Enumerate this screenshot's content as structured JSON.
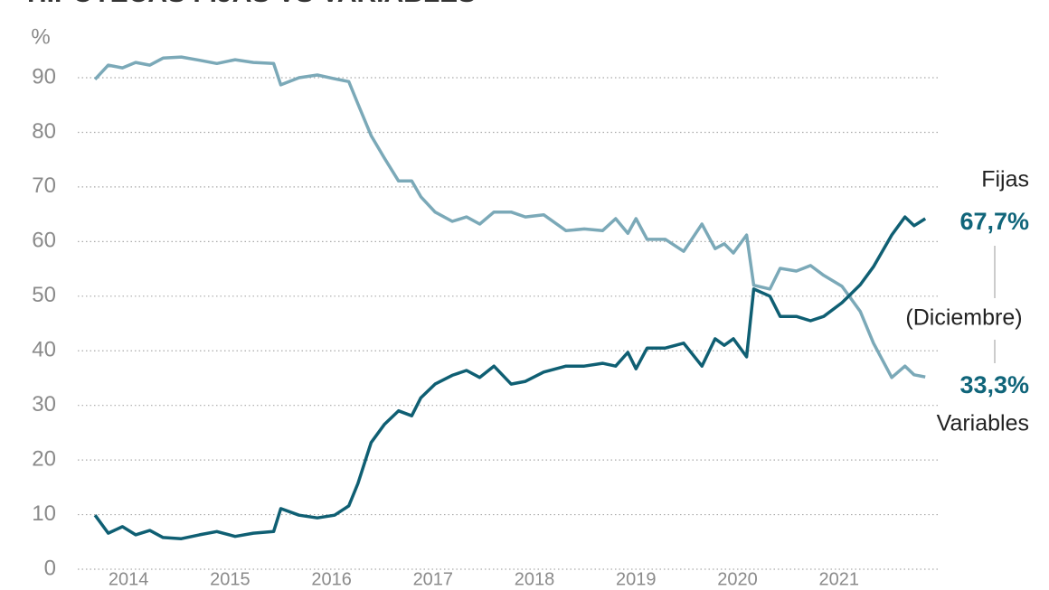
{
  "chart_data": {
    "type": "line",
    "title": "HIPOTECAS FIJAS VS VARIABLES",
    "y_label": "%",
    "x": [
      2013.67,
      2013.8,
      2013.94,
      2014.07,
      2014.21,
      2014.34,
      2014.52,
      2014.7,
      2014.87,
      2015.05,
      2015.23,
      2015.43,
      2015.5,
      2015.68,
      2015.86,
      2016.03,
      2016.17,
      2016.26,
      2016.39,
      2016.52,
      2016.66,
      2016.79,
      2016.88,
      2017.02,
      2017.19,
      2017.33,
      2017.46,
      2017.6,
      2017.77,
      2017.91,
      2018.09,
      2018.31,
      2018.49,
      2018.67,
      2018.8,
      2018.92,
      2019.0,
      2019.11,
      2019.29,
      2019.47,
      2019.65,
      2019.78,
      2019.87,
      2019.96,
      2020.09,
      2020.16,
      2020.32,
      2020.42,
      2020.58,
      2020.72,
      2020.85,
      2021.03,
      2021.21,
      2021.34,
      2021.52,
      2021.65,
      2021.74,
      2021.85
    ],
    "series": [
      {
        "name": "Fijas",
        "color": "#7ba9b8",
        "values": [
          89.7,
          92.3,
          91.8,
          92.8,
          92.3,
          93.6,
          93.8,
          93.2,
          92.6,
          93.3,
          92.8,
          92.6,
          88.7,
          90,
          90.5,
          89.8,
          89.3,
          85.2,
          79.4,
          75.3,
          71.1,
          71.1,
          68.2,
          65.4,
          63.7,
          64.5,
          63.2,
          65.4,
          65.4,
          64.5,
          64.9,
          62.0,
          62.3,
          62.0,
          64.2,
          61.5,
          64.2,
          60.4,
          60.4,
          58.2,
          63.2,
          58.7,
          59.6,
          57.9,
          61.2,
          52.0,
          51.3,
          55.1,
          54.6,
          55.6,
          53.8,
          51.8,
          47.2,
          41.4,
          35.1,
          37.2,
          35.6,
          35.2
        ]
      },
      {
        "name": "Variables",
        "color": "#0f5f73",
        "values": [
          9.9,
          6.6,
          7.8,
          6.3,
          7.1,
          5.8,
          5.6,
          6.3,
          6.9,
          6.0,
          6.6,
          6.9,
          11.1,
          9.9,
          9.4,
          9.9,
          11.6,
          15.7,
          23.2,
          26.5,
          29.0,
          28.1,
          31.4,
          33.9,
          35.5,
          36.4,
          35.1,
          37.2,
          33.9,
          34.4,
          36.1,
          37.2,
          37.2,
          37.7,
          37.2,
          39.7,
          36.7,
          40.5,
          40.5,
          41.4,
          37.2,
          42.2,
          41.0,
          42.2,
          38.9,
          51.3,
          50.0,
          46.3,
          46.3,
          45.5,
          46.3,
          48.8,
          52.1,
          55.4,
          61.2,
          64.5,
          62.9,
          64.2
        ]
      }
    ],
    "annotations": [
      "67,7%",
      "(Diciembre)",
      "33,3%"
    ],
    "xlim": [
      2013.5,
      2022.0
    ],
    "xticks": [
      2014,
      2015,
      2016,
      2017,
      2018,
      2019,
      2020,
      2021
    ],
    "ylim": [
      0,
      95
    ],
    "yticks": [
      0,
      10,
      20,
      30,
      40,
      50,
      60,
      70,
      80,
      90
    ],
    "grid": true
  }
}
